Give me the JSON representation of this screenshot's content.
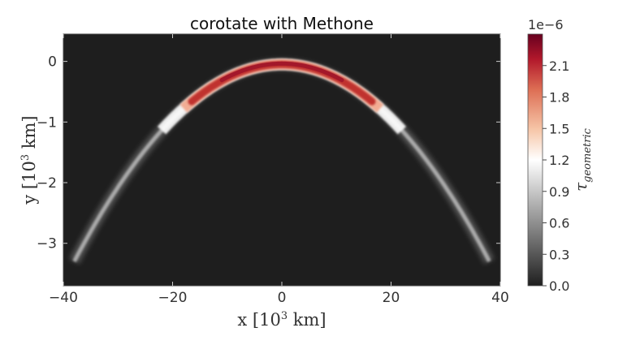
{
  "chart_data": {
    "type": "heatmap",
    "title": "corotate with Methone",
    "xlabel_parts": [
      "x [10",
      "3",
      " km]"
    ],
    "ylabel_parts": [
      "y [10",
      "3",
      " km]"
    ],
    "xlim": [
      -40,
      40
    ],
    "ylim": [
      -3.7,
      0.45
    ],
    "xticks": [
      -40,
      -20,
      0,
      20,
      40
    ],
    "xtick_labels": [
      "−40",
      "−20",
      "0",
      "20",
      "40"
    ],
    "yticks": [
      0,
      -1,
      -2,
      -3
    ],
    "ytick_labels": [
      "0",
      "−1",
      "−2",
      "−3"
    ],
    "arc": {
      "apex_x": 0,
      "apex_y": -0.05,
      "curvature": 0.00225,
      "center_width": 0.12,
      "edge_x": 38
    },
    "colorbar": {
      "label": "τ",
      "label_sub": "geometric",
      "multiplier": "1e−6",
      "range": [
        0.0,
        2.4
      ],
      "ticks": [
        0.0,
        0.3,
        0.6,
        0.9,
        1.2,
        1.5,
        1.8,
        2.1
      ],
      "tick_labels": [
        "0.0",
        "0.3",
        "0.6",
        "0.9",
        "1.2",
        "1.5",
        "1.8",
        "2.1"
      ],
      "colors": [
        "#1f1f1f",
        "#ffffff",
        "#b2182b",
        "#67001f"
      ]
    }
  }
}
